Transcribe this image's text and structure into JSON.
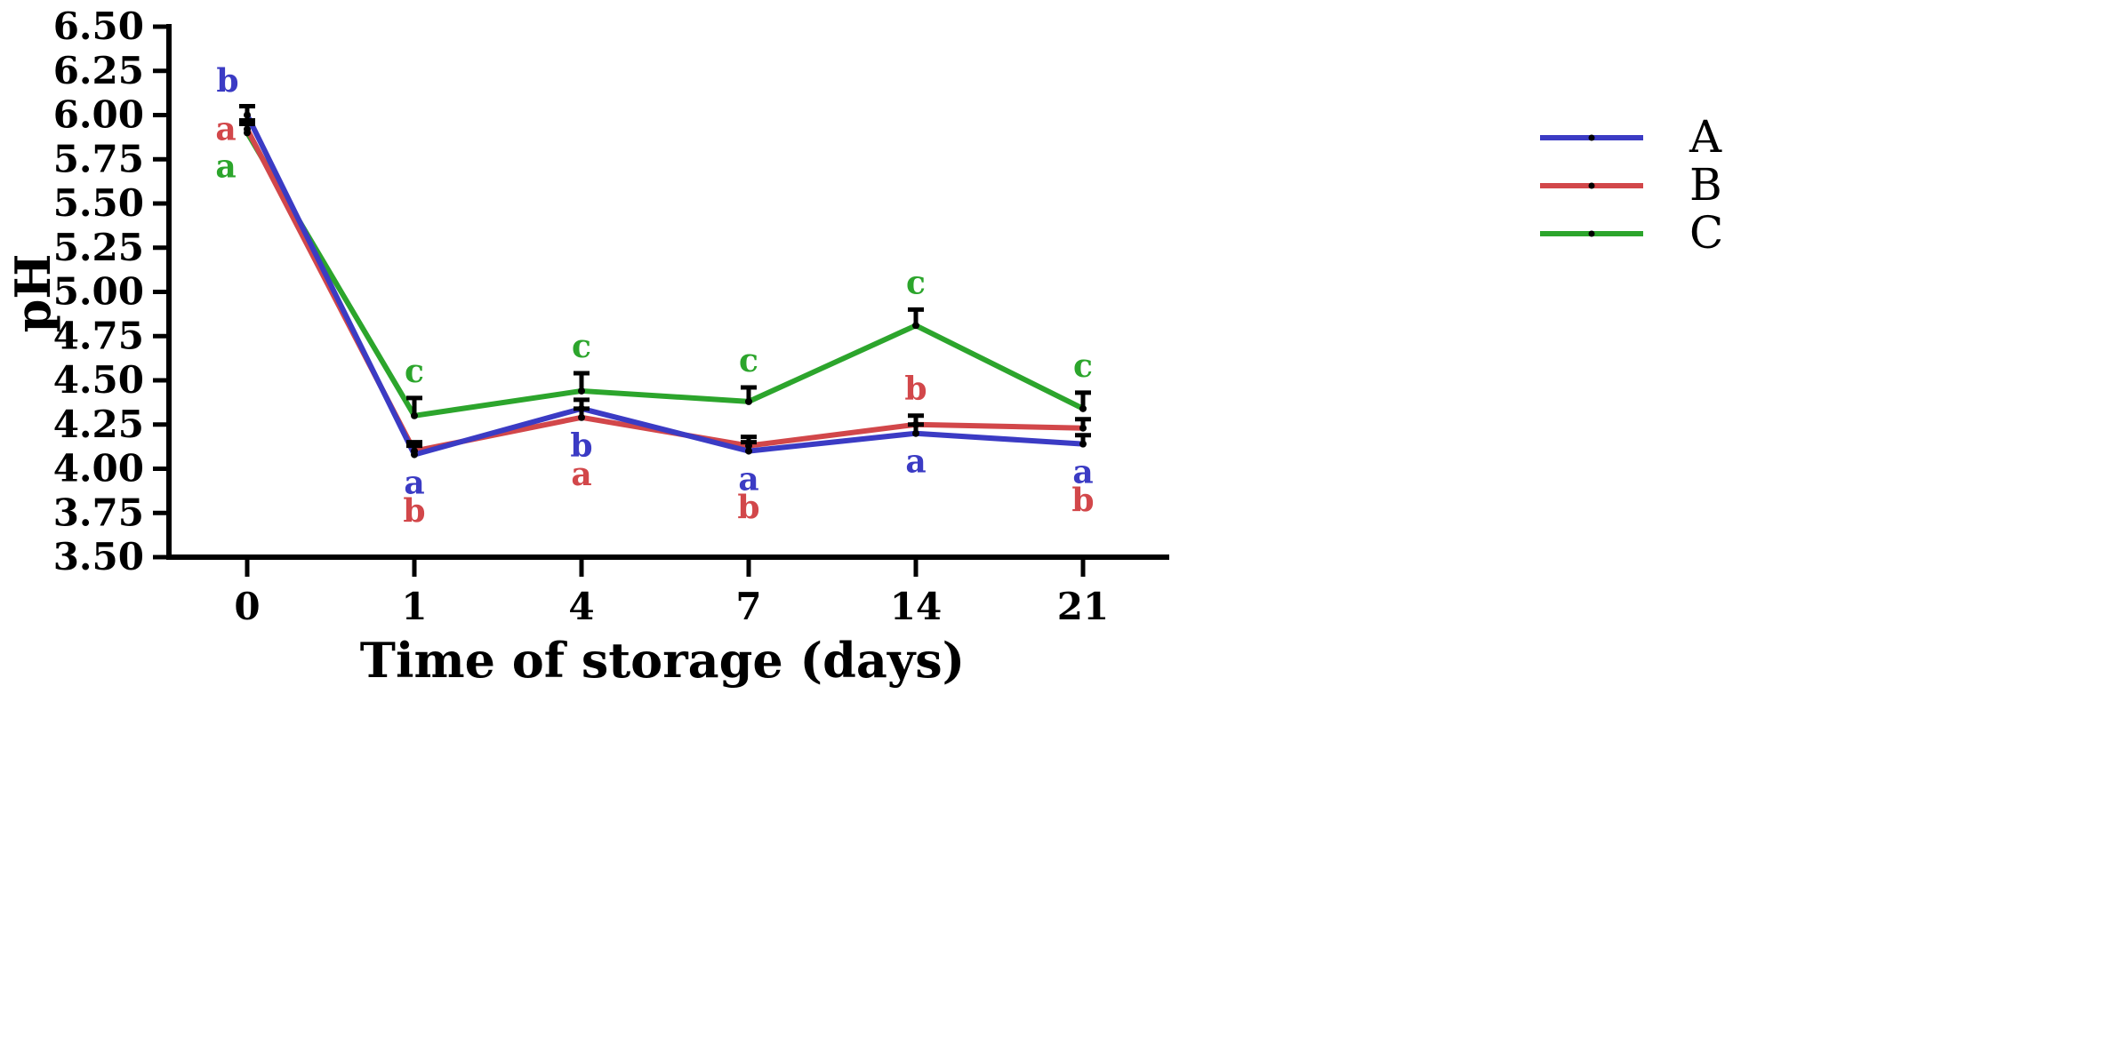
{
  "chart_data": {
    "type": "line",
    "title": "",
    "xlabel": "Time of storage (days)",
    "ylabel": "pH",
    "categories": [
      "0",
      "1",
      "4",
      "7",
      "14",
      "21"
    ],
    "ylim": [
      3.5,
      6.5
    ],
    "yticks": [
      "3.50",
      "3.75",
      "4.00",
      "4.25",
      "4.50",
      "4.75",
      "5.00",
      "5.25",
      "5.50",
      "5.75",
      "6.00",
      "6.25",
      "6.50"
    ],
    "grid": false,
    "legend_position": "right",
    "series": [
      {
        "name": "A",
        "color": "#3b3bc4",
        "values": [
          6.0,
          4.08,
          4.34,
          4.1,
          4.2,
          4.14
        ],
        "errors": [
          0.05,
          0.05,
          0.05,
          0.05,
          0.05,
          0.05
        ],
        "letters": [
          "b",
          "a",
          "b",
          "a",
          "a",
          "a"
        ],
        "letter_positions": [
          "above",
          "below",
          "below",
          "below",
          "below",
          "below"
        ]
      },
      {
        "name": "B",
        "color": "#d2474a",
        "values": [
          5.92,
          4.1,
          4.29,
          4.13,
          4.25,
          4.23
        ],
        "errors": [
          0.05,
          0.05,
          0.05,
          0.05,
          0.05,
          0.05
        ],
        "letters": [
          "a",
          "b",
          "a",
          "b",
          "b",
          "b"
        ],
        "letter_positions": [
          "left",
          "below",
          "below",
          "below",
          "above",
          "below"
        ]
      },
      {
        "name": "C",
        "color": "#2ca52c",
        "values": [
          5.9,
          4.3,
          4.44,
          4.38,
          4.81,
          4.34
        ],
        "errors": [
          0.05,
          0.1,
          0.1,
          0.08,
          0.09,
          0.09
        ],
        "letters": [
          "a",
          "c",
          "c",
          "c",
          "c",
          "c"
        ],
        "letter_positions": [
          "below",
          "above",
          "above",
          "above",
          "above",
          "above"
        ]
      }
    ]
  }
}
